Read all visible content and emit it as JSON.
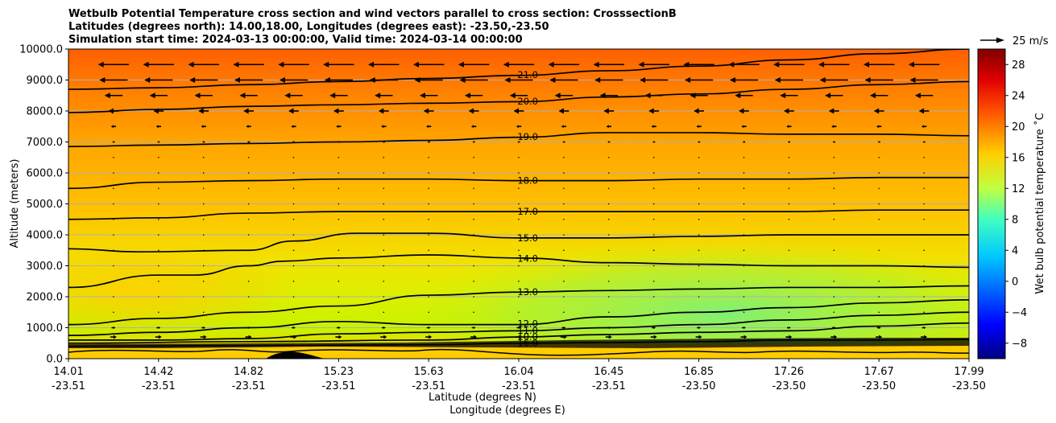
{
  "chart_data": {
    "type": "heatmap",
    "title_lines": [
      "Wetbulb Potential Temperature cross section and wind vectors parallel to cross section: CrosssectionB",
      "Latitudes (degrees north): 14.00,18.00, Longitudes (degrees east): -23.50,-23.50",
      "Simulation start time: 2024-03-13 00:00:00, Valid time: 2024-03-14 00:00:00"
    ],
    "xlabel": "Latitude (degrees N)",
    "xlabel2": "Longitude (degrees E)",
    "ylabel": "Altitude (meters)",
    "xlim": [
      0,
      10
    ],
    "ylim": [
      0,
      10000
    ],
    "x_ticks": [
      {
        "pos": 0,
        "lat": "14.01",
        "lon": "-23.51"
      },
      {
        "pos": 1,
        "lat": "14.42",
        "lon": "-23.51"
      },
      {
        "pos": 2,
        "lat": "14.82",
        "lon": "-23.51"
      },
      {
        "pos": 3,
        "lat": "15.23",
        "lon": "-23.51"
      },
      {
        "pos": 4,
        "lat": "15.63",
        "lon": "-23.51"
      },
      {
        "pos": 5,
        "lat": "16.04",
        "lon": "-23.51"
      },
      {
        "pos": 6,
        "lat": "16.45",
        "lon": "-23.51"
      },
      {
        "pos": 7,
        "lat": "16.85",
        "lon": "-23.50"
      },
      {
        "pos": 8,
        "lat": "17.26",
        "lon": "-23.50"
      },
      {
        "pos": 9,
        "lat": "17.67",
        "lon": "-23.50"
      },
      {
        "pos": 10,
        "lat": "17.99",
        "lon": "-23.50"
      }
    ],
    "y_ticks": [
      {
        "value": 0,
        "label": "0.0"
      },
      {
        "value": 1000,
        "label": "1000.0"
      },
      {
        "value": 2000,
        "label": "2000.0"
      },
      {
        "value": 3000,
        "label": "3000.0"
      },
      {
        "value": 4000,
        "label": "4000.0"
      },
      {
        "value": 5000,
        "label": "5000.0"
      },
      {
        "value": 6000,
        "label": "6000.0"
      },
      {
        "value": 7000,
        "label": "7000.0"
      },
      {
        "value": 8000,
        "label": "8000.0"
      },
      {
        "value": 9000,
        "label": "9000.0"
      },
      {
        "value": 10000,
        "label": "10000.0"
      }
    ],
    "colorbar": {
      "label": "Wet bulb potential temperature ˚C",
      "min": -10,
      "max": 30,
      "ticks": [
        {
          "value": -8,
          "label": "−8"
        },
        {
          "value": -4,
          "label": "−4"
        },
        {
          "value": 0,
          "label": "0"
        },
        {
          "value": 4,
          "label": "4"
        },
        {
          "value": 8,
          "label": "8"
        },
        {
          "value": 12,
          "label": "12"
        },
        {
          "value": 16,
          "label": "16"
        },
        {
          "value": 20,
          "label": "20"
        },
        {
          "value": 24,
          "label": "24"
        },
        {
          "value": 28,
          "label": "28"
        }
      ]
    },
    "quiver_key": {
      "label": "25 m/s",
      "speed": 25
    },
    "contours": [
      {
        "level": 21,
        "label": "21.0",
        "points": [
          [
            0,
            8700
          ],
          [
            1,
            8750
          ],
          [
            2,
            8850
          ],
          [
            3,
            8950
          ],
          [
            4,
            9050
          ],
          [
            5,
            9150
          ],
          [
            6,
            9300
          ],
          [
            7,
            9450
          ],
          [
            8,
            9650
          ],
          [
            9,
            9850
          ],
          [
            10,
            10000
          ]
        ]
      },
      {
        "level": 20,
        "label": "20.0",
        "points": [
          [
            0,
            7950
          ],
          [
            1,
            8050
          ],
          [
            2,
            8150
          ],
          [
            3,
            8200
          ],
          [
            4,
            8250
          ],
          [
            5,
            8300
          ],
          [
            6,
            8450
          ],
          [
            7,
            8550
          ],
          [
            8,
            8700
          ],
          [
            9,
            8850
          ],
          [
            10,
            8950
          ]
        ]
      },
      {
        "level": 19,
        "label": "19.0",
        "points": [
          [
            0,
            6850
          ],
          [
            1,
            6900
          ],
          [
            2,
            6950
          ],
          [
            3,
            7000
          ],
          [
            4,
            7050
          ],
          [
            5,
            7150
          ],
          [
            6,
            7300
          ],
          [
            7,
            7300
          ],
          [
            8,
            7250
          ],
          [
            9,
            7250
          ],
          [
            10,
            7200
          ]
        ]
      },
      {
        "level": 18,
        "label": "18.0",
        "points": [
          [
            0,
            5500
          ],
          [
            1,
            5700
          ],
          [
            2,
            5750
          ],
          [
            3,
            5800
          ],
          [
            4,
            5800
          ],
          [
            5,
            5750
          ],
          [
            6,
            5750
          ],
          [
            7,
            5800
          ],
          [
            8,
            5800
          ],
          [
            9,
            5850
          ],
          [
            10,
            5850
          ]
        ]
      },
      {
        "level": 17,
        "label": "17.0",
        "points": [
          [
            0,
            4500
          ],
          [
            1,
            4550
          ],
          [
            2,
            4700
          ],
          [
            3,
            4750
          ],
          [
            4,
            4750
          ],
          [
            5,
            4750
          ],
          [
            6,
            4750
          ],
          [
            7,
            4750
          ],
          [
            8,
            4750
          ],
          [
            9,
            4800
          ],
          [
            10,
            4800
          ]
        ]
      },
      {
        "level": 15,
        "label": "15.0",
        "points": [
          [
            0,
            3550
          ],
          [
            0.8,
            3450
          ],
          [
            2,
            3500
          ],
          [
            2.5,
            3800
          ],
          [
            3.2,
            4050
          ],
          [
            4,
            4050
          ],
          [
            5,
            3900
          ],
          [
            6,
            3900
          ],
          [
            7,
            3950
          ],
          [
            8,
            4000
          ],
          [
            9,
            4000
          ],
          [
            10,
            4000
          ]
        ]
      },
      {
        "level": 14,
        "label": "14.0",
        "points": [
          [
            0,
            2300
          ],
          [
            1,
            2700
          ],
          [
            1.4,
            2700
          ],
          [
            2,
            3000
          ],
          [
            2.4,
            3150
          ],
          [
            3,
            3250
          ],
          [
            4,
            3350
          ],
          [
            5,
            3250
          ],
          [
            6,
            3100
          ],
          [
            7,
            3050
          ],
          [
            8,
            3000
          ],
          [
            9,
            3000
          ],
          [
            10,
            2950
          ]
        ]
      },
      {
        "level": 13,
        "label": "13.0",
        "points": [
          [
            0,
            1100
          ],
          [
            1,
            1300
          ],
          [
            2,
            1500
          ],
          [
            3,
            1700
          ],
          [
            4,
            2050
          ],
          [
            5,
            2150
          ],
          [
            6,
            2200
          ],
          [
            7,
            2250
          ],
          [
            8,
            2300
          ],
          [
            9,
            2300
          ],
          [
            10,
            2350
          ]
        ]
      },
      {
        "level": 12,
        "label": "12.0",
        "points": [
          [
            0,
            750
          ],
          [
            1,
            850
          ],
          [
            2,
            1000
          ],
          [
            3,
            1200
          ],
          [
            4,
            1100
          ],
          [
            5,
            1100
          ],
          [
            6,
            1350
          ],
          [
            7,
            1500
          ],
          [
            8,
            1650
          ],
          [
            9,
            1800
          ],
          [
            10,
            1900
          ]
        ]
      },
      {
        "level": 11,
        "label": "11.0",
        "points": [
          [
            0,
            600
          ],
          [
            1,
            600
          ],
          [
            2,
            650
          ],
          [
            3,
            800
          ],
          [
            4,
            850
          ],
          [
            5,
            900
          ],
          [
            6,
            1000
          ],
          [
            7,
            1100
          ],
          [
            8,
            1250
          ],
          [
            9,
            1400
          ],
          [
            10,
            1500
          ]
        ]
      },
      {
        "level": 10,
        "label": "10.0",
        "points": [
          [
            0,
            500
          ],
          [
            2,
            550
          ],
          [
            4,
            600
          ],
          [
            5,
            700
          ],
          [
            6,
            780
          ],
          [
            7,
            850
          ],
          [
            8,
            900
          ],
          [
            9,
            1050
          ],
          [
            10,
            1150
          ]
        ]
      },
      {
        "level": 16,
        "label": "16.0",
        "points": [
          [
            0,
            400
          ],
          [
            2,
            420
          ],
          [
            4,
            450
          ],
          [
            5,
            500
          ],
          [
            6,
            520
          ],
          [
            7,
            550
          ],
          [
            8,
            600
          ],
          [
            9,
            600
          ],
          [
            10,
            620
          ]
        ]
      }
    ],
    "wind_rows": [
      {
        "alt": 9500,
        "u": -12
      },
      {
        "alt": 9000,
        "u": -11
      },
      {
        "alt": 8500,
        "u": -7
      },
      {
        "alt": 8000,
        "u": -4
      },
      {
        "alt": 7500,
        "u": -2
      },
      {
        "alt": 7000,
        "u": -1
      },
      {
        "alt": 6500,
        "u": -0.5
      },
      {
        "alt": 6000,
        "u": -0.4
      },
      {
        "alt": 5500,
        "u": -0.3
      },
      {
        "alt": 5000,
        "u": -0.3
      },
      {
        "alt": 4500,
        "u": -0.3
      },
      {
        "alt": 4000,
        "u": -0.3
      },
      {
        "alt": 3500,
        "u": -0.3
      },
      {
        "alt": 3000,
        "u": -0.6
      },
      {
        "alt": 2500,
        "u": -0.5
      },
      {
        "alt": 2000,
        "u": -0.3
      },
      {
        "alt": 1500,
        "u": 0.3
      },
      {
        "alt": 1000,
        "u": 1.5
      },
      {
        "alt": 700,
        "u": 2.5
      }
    ],
    "notes": "Contour lines of wet bulb potential temperature with inline labels; colour field blends from red-orange aloft to green near surface."
  }
}
